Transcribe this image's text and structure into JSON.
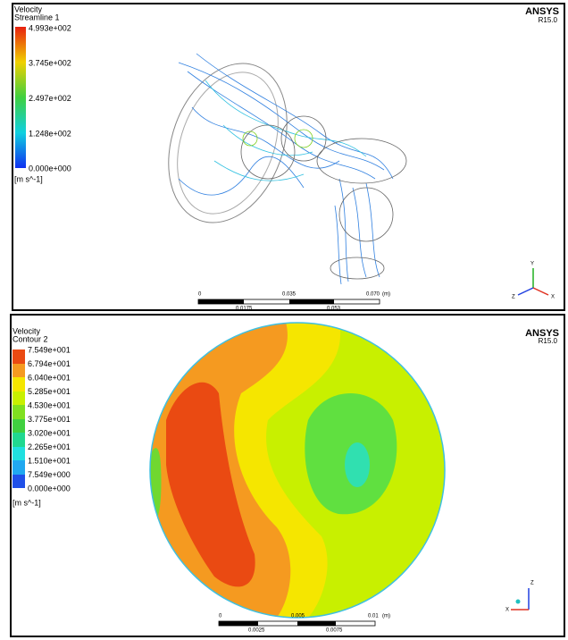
{
  "panels": [
    {
      "title": "Velocity",
      "subtitle": "Streamline 1",
      "legend": [
        "4.993e+002",
        "3.745e+002",
        "2.497e+002",
        "1.248e+002",
        "0.000e+000"
      ],
      "unit": "[m s^-1]",
      "brand": "ANSYS",
      "version": "R15.0",
      "scale": {
        "top": [
          "0",
          "0.035",
          "0.070",
          "(m)"
        ],
        "bottom": [
          "0.0175",
          "0.053"
        ]
      },
      "axes": [
        "Y",
        "Z",
        "X"
      ]
    },
    {
      "title": "Velocity",
      "subtitle": "Contour 2",
      "legend": [
        "7.549e+001",
        "6.794e+001",
        "6.040e+001",
        "5.285e+001",
        "4.530e+001",
        "3.775e+001",
        "3.020e+001",
        "2.265e+001",
        "1.510e+001",
        "7.549e+000",
        "0.000e+000"
      ],
      "unit": "[m s^-1]",
      "brand": "ANSYS",
      "version": "R15.0",
      "scale": {
        "top": [
          "0",
          "0.005",
          "0.01",
          "(m)"
        ],
        "bottom": [
          "0.0025",
          "0.0075"
        ]
      },
      "axes": [
        "Z",
        "X"
      ]
    }
  ]
}
